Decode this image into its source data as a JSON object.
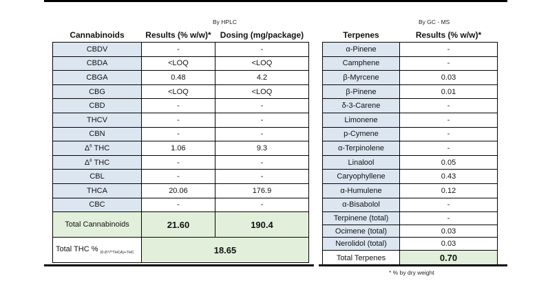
{
  "cannabinoids": {
    "method": "By HPLC",
    "headers": [
      "Cannabinoids",
      "Results (% w/w)*",
      "Dosing (mg/package)"
    ],
    "rows": [
      {
        "name": "CBDV",
        "result": "-",
        "dose": "-"
      },
      {
        "name": "CBDA",
        "result": "<LOQ",
        "dose": "<LOQ"
      },
      {
        "name": "CBGA",
        "result": "0.48",
        "dose": "4.2"
      },
      {
        "name": "CBG",
        "result": "<LOQ",
        "dose": "<LOQ"
      },
      {
        "name": "CBD",
        "result": "-",
        "dose": "-"
      },
      {
        "name": "THCV",
        "result": "-",
        "dose": "-"
      },
      {
        "name": "CBN",
        "result": "-",
        "dose": "-"
      },
      {
        "name_prefix": "Δ",
        "name_sup": "9",
        "name_suffix": " THC",
        "result": "1.06",
        "dose": "9.3"
      },
      {
        "name_prefix": "Δ",
        "name_sup": "8",
        "name_suffix": " THC",
        "result": "-",
        "dose": "-"
      },
      {
        "name": "CBL",
        "result": "-",
        "dose": "-"
      },
      {
        "name": "THCA",
        "result": "20.06",
        "dose": "176.9"
      },
      {
        "name": "CBC",
        "result": "-",
        "dose": "-"
      }
    ],
    "total_label": "Total Cannabinoids",
    "total_result": "21.60",
    "total_dose": "190.4",
    "thc_label": "Total THC % ",
    "thc_formula": "(0.877*THCA)+THC",
    "thc_value": "18.65"
  },
  "terpenes": {
    "method": "By GC - MS",
    "headers": [
      "Terpenes",
      "Results (% w/w)*"
    ],
    "rows": [
      {
        "name": "α-Pinene",
        "result": "-"
      },
      {
        "name": "Camphene",
        "result": "-"
      },
      {
        "name": "β-Myrcene",
        "result": "0.03"
      },
      {
        "name": "β-Pinene",
        "result": "0.01"
      },
      {
        "name": "δ-3-Carene",
        "result": "-"
      },
      {
        "name": "Limonene",
        "result": "-"
      },
      {
        "name": "p-Cymene",
        "result": "-"
      },
      {
        "name": "α-Terpinolene",
        "result": "-"
      },
      {
        "name": "Linalool",
        "result": "0.05"
      },
      {
        "name": "Caryophyllene",
        "result": "0.43"
      },
      {
        "name": "α-Humulene",
        "result": "0.12"
      },
      {
        "name": "α-Bisabolol",
        "result": "-"
      }
    ],
    "sub_rows": [
      {
        "name": "Terpinene (total)",
        "result": "-"
      },
      {
        "name": "Ocimene (total)",
        "result": "0.03"
      },
      {
        "name": "Nerolidol (total)",
        "result": "0.03"
      }
    ],
    "total_label": "Total Terpenes",
    "total_result": "0.70",
    "footnote": "* % by dry weight"
  },
  "colors": {
    "name_cell": "#dce6f1",
    "total_cell": "#e2efda"
  }
}
